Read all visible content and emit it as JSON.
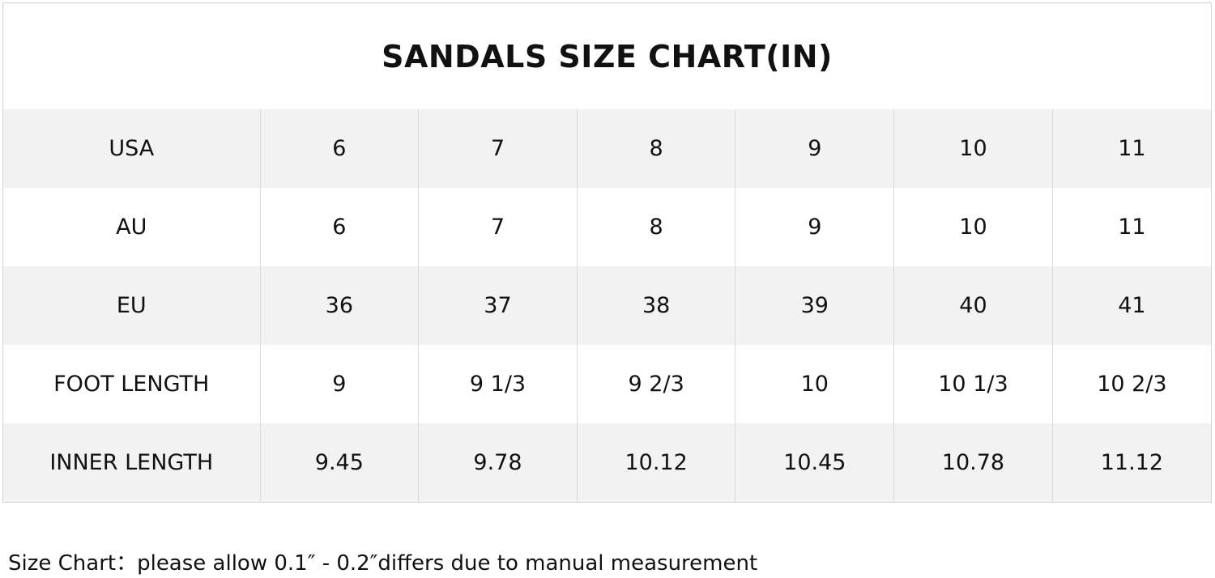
{
  "table": {
    "title": "SANDALS SIZE CHART(IN)",
    "rows": [
      [
        "USA",
        "6",
        "7",
        "8",
        "9",
        "10",
        "11"
      ],
      [
        "AU",
        "6",
        "7",
        "8",
        "9",
        "10",
        "11"
      ],
      [
        "EU",
        "36",
        "37",
        "38",
        "39",
        "40",
        "41"
      ],
      [
        "FOOT LENGTH",
        "9",
        "9 1/3",
        "9 2/3",
        "10",
        "10 1/3",
        "10 2/3"
      ],
      [
        "INNER LENGTH",
        "9.45",
        "9.78",
        "10.12",
        "10.45",
        "10.78",
        "11.12"
      ]
    ]
  },
  "note": "Size Chart：please allow 0.1″ - 0.2″differs due to manual measurement"
}
